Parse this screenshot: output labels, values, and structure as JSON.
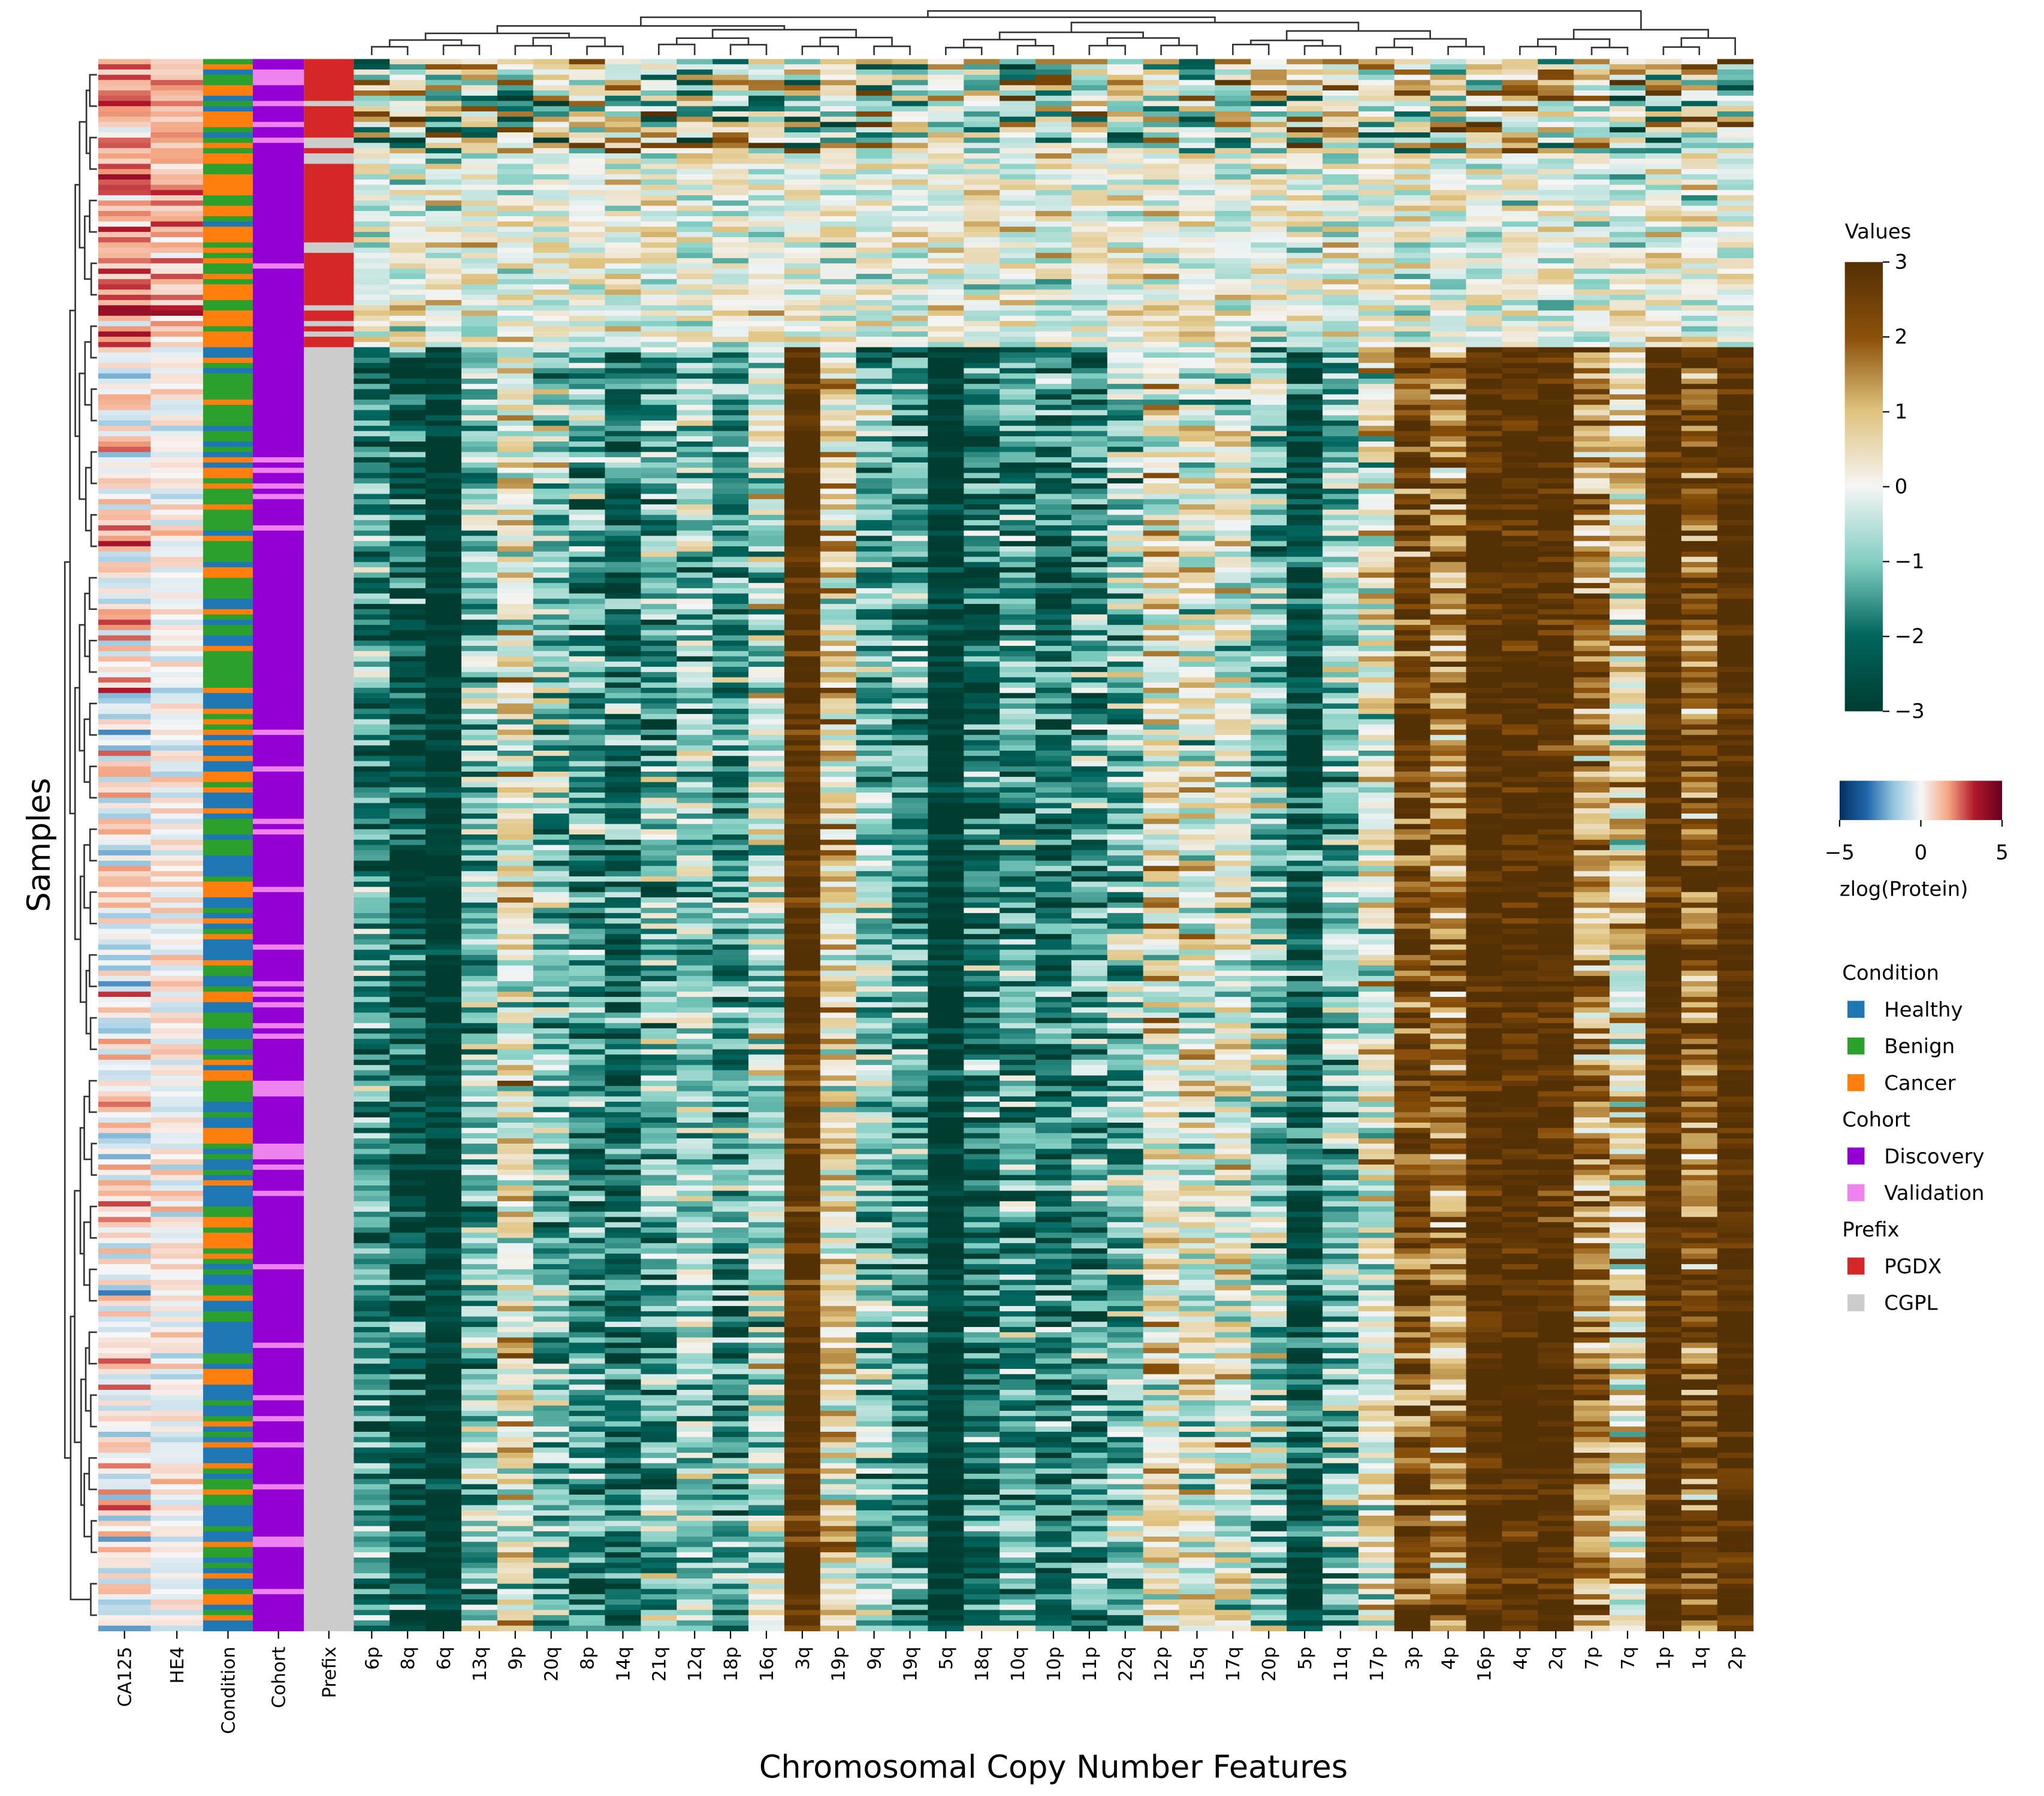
{
  "chart_data": {
    "type": "heatmap",
    "title": "",
    "xlabel": "Chromosomal Copy Number Features",
    "ylabel": "Samples",
    "columns": [
      "6p",
      "8q",
      "6q",
      "13q",
      "9p",
      "20q",
      "8p",
      "14q",
      "21q",
      "12q",
      "18p",
      "16q",
      "3q",
      "19p",
      "9q",
      "19q",
      "5q",
      "18q",
      "10q",
      "10p",
      "11p",
      "22q",
      "12p",
      "15q",
      "17q",
      "20p",
      "5p",
      "11q",
      "17p",
      "3p",
      "4p",
      "16p",
      "4q",
      "2q",
      "7p",
      "7q",
      "1p",
      "1q",
      "2p"
    ],
    "column_means_cgpl_block": [
      -1.5,
      -2.5,
      -3,
      -1,
      0.3,
      -1,
      -1.5,
      -2,
      -1.2,
      -0.8,
      -1.5,
      -0.5,
      3,
      0.5,
      -1,
      -1.5,
      -3,
      -2,
      -1.5,
      -2,
      -1.5,
      -1,
      0.3,
      0,
      0,
      -0.8,
      -2.5,
      -1,
      0,
      2.5,
      1.5,
      3,
      3,
      3,
      1.5,
      0.5,
      3,
      2,
      3
    ],
    "row_annotation_labels": [
      "CA125",
      "HE4",
      "Condition",
      "Cohort",
      "Prefix"
    ],
    "dendrogram_rows": true,
    "dendrogram_columns": true,
    "colorbar_values": {
      "title": "Values",
      "colormap": "BrBG_r",
      "range": [
        -3,
        3
      ],
      "ticks": [
        "3",
        "2",
        "1",
        "0",
        "−1",
        "−2",
        "−3"
      ]
    },
    "colorbar_protein": {
      "label": "zlog(Protein)",
      "colormap": "RdBu_r",
      "range": [
        -5,
        5
      ],
      "ticks": [
        "−5",
        "0",
        "5"
      ]
    },
    "legend": {
      "placement": "right",
      "groups": [
        {
          "title": "Condition",
          "items": [
            {
              "label": "Healthy",
              "color": "#1f77b4"
            },
            {
              "label": "Benign",
              "color": "#2ca02c"
            },
            {
              "label": "Cancer",
              "color": "#ff7f0e"
            }
          ]
        },
        {
          "title": "Cohort",
          "items": [
            {
              "label": "Discovery",
              "color": "#9400d3"
            },
            {
              "label": "Validation",
              "color": "#ee82ee"
            }
          ]
        },
        {
          "title": "Prefix",
          "items": [
            {
              "label": "PGDX",
              "color": "#d62728"
            },
            {
              "label": "CGPL",
              "color": "#cccccc"
            }
          ]
        }
      ]
    }
  }
}
